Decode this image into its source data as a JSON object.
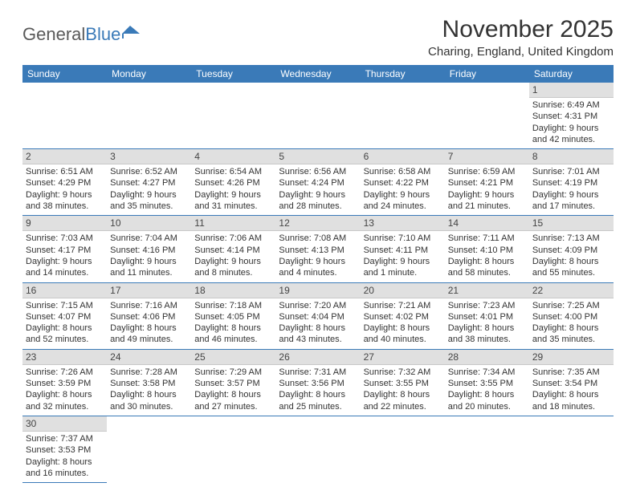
{
  "logo": {
    "part1": "General",
    "part2": "Blue"
  },
  "title": "November 2025",
  "location": "Charing, England, United Kingdom",
  "colors": {
    "header_bg": "#3a7ab8",
    "header_text": "#ffffff",
    "daynum_bg": "#e0e0e0",
    "border": "#3a7ab8",
    "logo_gray": "#5a5a5a",
    "logo_blue": "#3a7ab8"
  },
  "dayNames": [
    "Sunday",
    "Monday",
    "Tuesday",
    "Wednesday",
    "Thursday",
    "Friday",
    "Saturday"
  ],
  "weeks": [
    [
      null,
      null,
      null,
      null,
      null,
      null,
      {
        "n": "1",
        "sr": "6:49 AM",
        "ss": "4:31 PM",
        "dl": "9 hours and 42 minutes."
      }
    ],
    [
      {
        "n": "2",
        "sr": "6:51 AM",
        "ss": "4:29 PM",
        "dl": "9 hours and 38 minutes."
      },
      {
        "n": "3",
        "sr": "6:52 AM",
        "ss": "4:27 PM",
        "dl": "9 hours and 35 minutes."
      },
      {
        "n": "4",
        "sr": "6:54 AM",
        "ss": "4:26 PM",
        "dl": "9 hours and 31 minutes."
      },
      {
        "n": "5",
        "sr": "6:56 AM",
        "ss": "4:24 PM",
        "dl": "9 hours and 28 minutes."
      },
      {
        "n": "6",
        "sr": "6:58 AM",
        "ss": "4:22 PM",
        "dl": "9 hours and 24 minutes."
      },
      {
        "n": "7",
        "sr": "6:59 AM",
        "ss": "4:21 PM",
        "dl": "9 hours and 21 minutes."
      },
      {
        "n": "8",
        "sr": "7:01 AM",
        "ss": "4:19 PM",
        "dl": "9 hours and 17 minutes."
      }
    ],
    [
      {
        "n": "9",
        "sr": "7:03 AM",
        "ss": "4:17 PM",
        "dl": "9 hours and 14 minutes."
      },
      {
        "n": "10",
        "sr": "7:04 AM",
        "ss": "4:16 PM",
        "dl": "9 hours and 11 minutes."
      },
      {
        "n": "11",
        "sr": "7:06 AM",
        "ss": "4:14 PM",
        "dl": "9 hours and 8 minutes."
      },
      {
        "n": "12",
        "sr": "7:08 AM",
        "ss": "4:13 PM",
        "dl": "9 hours and 4 minutes."
      },
      {
        "n": "13",
        "sr": "7:10 AM",
        "ss": "4:11 PM",
        "dl": "9 hours and 1 minute."
      },
      {
        "n": "14",
        "sr": "7:11 AM",
        "ss": "4:10 PM",
        "dl": "8 hours and 58 minutes."
      },
      {
        "n": "15",
        "sr": "7:13 AM",
        "ss": "4:09 PM",
        "dl": "8 hours and 55 minutes."
      }
    ],
    [
      {
        "n": "16",
        "sr": "7:15 AM",
        "ss": "4:07 PM",
        "dl": "8 hours and 52 minutes."
      },
      {
        "n": "17",
        "sr": "7:16 AM",
        "ss": "4:06 PM",
        "dl": "8 hours and 49 minutes."
      },
      {
        "n": "18",
        "sr": "7:18 AM",
        "ss": "4:05 PM",
        "dl": "8 hours and 46 minutes."
      },
      {
        "n": "19",
        "sr": "7:20 AM",
        "ss": "4:04 PM",
        "dl": "8 hours and 43 minutes."
      },
      {
        "n": "20",
        "sr": "7:21 AM",
        "ss": "4:02 PM",
        "dl": "8 hours and 40 minutes."
      },
      {
        "n": "21",
        "sr": "7:23 AM",
        "ss": "4:01 PM",
        "dl": "8 hours and 38 minutes."
      },
      {
        "n": "22",
        "sr": "7:25 AM",
        "ss": "4:00 PM",
        "dl": "8 hours and 35 minutes."
      }
    ],
    [
      {
        "n": "23",
        "sr": "7:26 AM",
        "ss": "3:59 PM",
        "dl": "8 hours and 32 minutes."
      },
      {
        "n": "24",
        "sr": "7:28 AM",
        "ss": "3:58 PM",
        "dl": "8 hours and 30 minutes."
      },
      {
        "n": "25",
        "sr": "7:29 AM",
        "ss": "3:57 PM",
        "dl": "8 hours and 27 minutes."
      },
      {
        "n": "26",
        "sr": "7:31 AM",
        "ss": "3:56 PM",
        "dl": "8 hours and 25 minutes."
      },
      {
        "n": "27",
        "sr": "7:32 AM",
        "ss": "3:55 PM",
        "dl": "8 hours and 22 minutes."
      },
      {
        "n": "28",
        "sr": "7:34 AM",
        "ss": "3:55 PM",
        "dl": "8 hours and 20 minutes."
      },
      {
        "n": "29",
        "sr": "7:35 AM",
        "ss": "3:54 PM",
        "dl": "8 hours and 18 minutes."
      }
    ],
    [
      {
        "n": "30",
        "sr": "7:37 AM",
        "ss": "3:53 PM",
        "dl": "8 hours and 16 minutes."
      },
      null,
      null,
      null,
      null,
      null,
      null
    ]
  ],
  "labels": {
    "sunrise": "Sunrise:",
    "sunset": "Sunset:",
    "daylight": "Daylight:"
  }
}
